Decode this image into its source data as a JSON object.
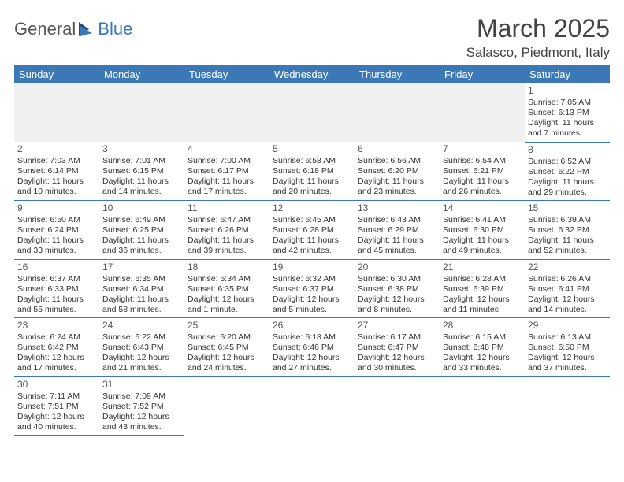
{
  "logo": {
    "part1": "General",
    "part2": "Blue"
  },
  "title": "March 2025",
  "location": "Salasco, Piedmont, Italy",
  "colors": {
    "header_bg": "#3b78b5",
    "header_text": "#ffffff",
    "border": "#3b78b5",
    "blank_bg": "#f0f0f0",
    "logo_gray": "#555555",
    "logo_blue": "#3b78b5"
  },
  "dayHeaders": [
    "Sunday",
    "Monday",
    "Tuesday",
    "Wednesday",
    "Thursday",
    "Friday",
    "Saturday"
  ],
  "weeks": [
    [
      null,
      null,
      null,
      null,
      null,
      null,
      {
        "n": "1",
        "sr": "7:05 AM",
        "ss": "6:13 PM",
        "dl": "11 hours and 7 minutes."
      }
    ],
    [
      {
        "n": "2",
        "sr": "7:03 AM",
        "ss": "6:14 PM",
        "dl": "11 hours and 10 minutes."
      },
      {
        "n": "3",
        "sr": "7:01 AM",
        "ss": "6:15 PM",
        "dl": "11 hours and 14 minutes."
      },
      {
        "n": "4",
        "sr": "7:00 AM",
        "ss": "6:17 PM",
        "dl": "11 hours and 17 minutes."
      },
      {
        "n": "5",
        "sr": "6:58 AM",
        "ss": "6:18 PM",
        "dl": "11 hours and 20 minutes."
      },
      {
        "n": "6",
        "sr": "6:56 AM",
        "ss": "6:20 PM",
        "dl": "11 hours and 23 minutes."
      },
      {
        "n": "7",
        "sr": "6:54 AM",
        "ss": "6:21 PM",
        "dl": "11 hours and 26 minutes."
      },
      {
        "n": "8",
        "sr": "6:52 AM",
        "ss": "6:22 PM",
        "dl": "11 hours and 29 minutes."
      }
    ],
    [
      {
        "n": "9",
        "sr": "6:50 AM",
        "ss": "6:24 PM",
        "dl": "11 hours and 33 minutes."
      },
      {
        "n": "10",
        "sr": "6:49 AM",
        "ss": "6:25 PM",
        "dl": "11 hours and 36 minutes."
      },
      {
        "n": "11",
        "sr": "6:47 AM",
        "ss": "6:26 PM",
        "dl": "11 hours and 39 minutes."
      },
      {
        "n": "12",
        "sr": "6:45 AM",
        "ss": "6:28 PM",
        "dl": "11 hours and 42 minutes."
      },
      {
        "n": "13",
        "sr": "6:43 AM",
        "ss": "6:29 PM",
        "dl": "11 hours and 45 minutes."
      },
      {
        "n": "14",
        "sr": "6:41 AM",
        "ss": "6:30 PM",
        "dl": "11 hours and 49 minutes."
      },
      {
        "n": "15",
        "sr": "6:39 AM",
        "ss": "6:32 PM",
        "dl": "11 hours and 52 minutes."
      }
    ],
    [
      {
        "n": "16",
        "sr": "6:37 AM",
        "ss": "6:33 PM",
        "dl": "11 hours and 55 minutes."
      },
      {
        "n": "17",
        "sr": "6:35 AM",
        "ss": "6:34 PM",
        "dl": "11 hours and 58 minutes."
      },
      {
        "n": "18",
        "sr": "6:34 AM",
        "ss": "6:35 PM",
        "dl": "12 hours and 1 minute."
      },
      {
        "n": "19",
        "sr": "6:32 AM",
        "ss": "6:37 PM",
        "dl": "12 hours and 5 minutes."
      },
      {
        "n": "20",
        "sr": "6:30 AM",
        "ss": "6:38 PM",
        "dl": "12 hours and 8 minutes."
      },
      {
        "n": "21",
        "sr": "6:28 AM",
        "ss": "6:39 PM",
        "dl": "12 hours and 11 minutes."
      },
      {
        "n": "22",
        "sr": "6:26 AM",
        "ss": "6:41 PM",
        "dl": "12 hours and 14 minutes."
      }
    ],
    [
      {
        "n": "23",
        "sr": "6:24 AM",
        "ss": "6:42 PM",
        "dl": "12 hours and 17 minutes."
      },
      {
        "n": "24",
        "sr": "6:22 AM",
        "ss": "6:43 PM",
        "dl": "12 hours and 21 minutes."
      },
      {
        "n": "25",
        "sr": "6:20 AM",
        "ss": "6:45 PM",
        "dl": "12 hours and 24 minutes."
      },
      {
        "n": "26",
        "sr": "6:18 AM",
        "ss": "6:46 PM",
        "dl": "12 hours and 27 minutes."
      },
      {
        "n": "27",
        "sr": "6:17 AM",
        "ss": "6:47 PM",
        "dl": "12 hours and 30 minutes."
      },
      {
        "n": "28",
        "sr": "6:15 AM",
        "ss": "6:48 PM",
        "dl": "12 hours and 33 minutes."
      },
      {
        "n": "29",
        "sr": "6:13 AM",
        "ss": "6:50 PM",
        "dl": "12 hours and 37 minutes."
      }
    ],
    [
      {
        "n": "30",
        "sr": "7:11 AM",
        "ss": "7:51 PM",
        "dl": "12 hours and 40 minutes."
      },
      {
        "n": "31",
        "sr": "7:09 AM",
        "ss": "7:52 PM",
        "dl": "12 hours and 43 minutes."
      },
      null,
      null,
      null,
      null,
      null
    ]
  ],
  "labels": {
    "sunrise": "Sunrise: ",
    "sunset": "Sunset: ",
    "daylight": "Daylight: "
  }
}
